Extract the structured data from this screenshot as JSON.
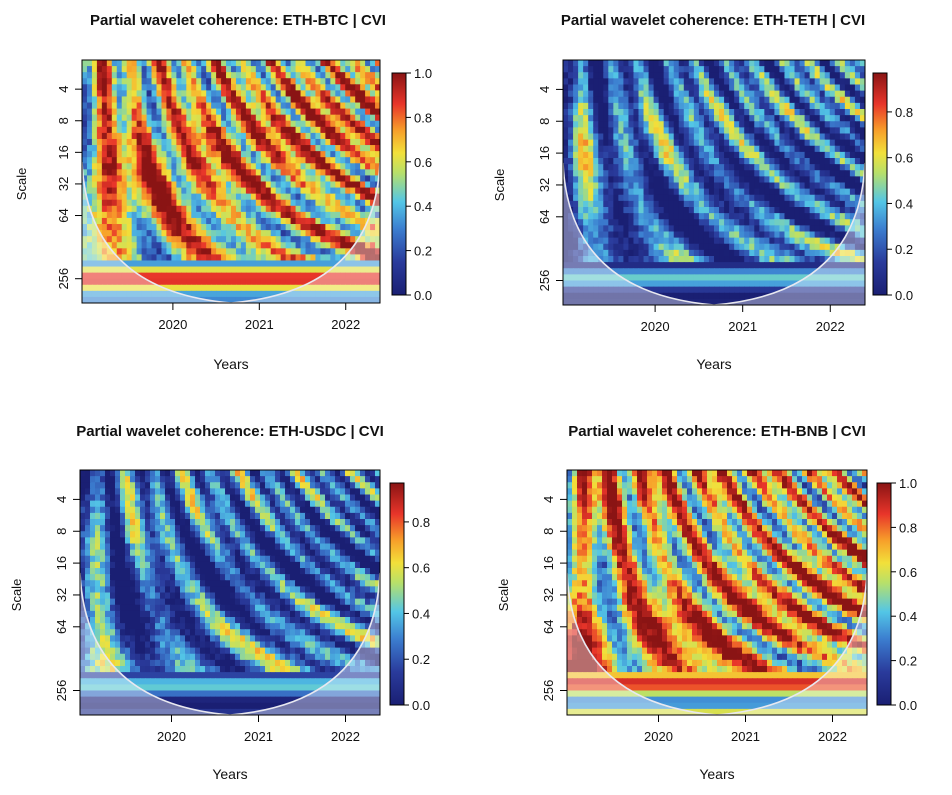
{
  "figure": {
    "panel_count": 4
  },
  "chart_data": [
    {
      "type": "heatmap",
      "title": "Partial wavelet coherence: ETH-BTC | CVI",
      "xlabel": "Years",
      "ylabel": "Scale",
      "x_ticks": [
        "2020",
        "2021",
        "2022"
      ],
      "y_ticks": [
        "4",
        "8",
        "16",
        "32",
        "64",
        "256"
      ],
      "colorbar": {
        "ticks": [
          "0.0",
          "0.2",
          "0.4",
          "0.6",
          "0.8",
          "1.0"
        ],
        "range": [
          0,
          1.0
        ]
      },
      "dominant_coherence": "high"
    },
    {
      "type": "heatmap",
      "title": "Partial wavelet coherence: ETH-TETH | CVI",
      "xlabel": "Years",
      "ylabel": "Scale",
      "x_ticks": [
        "2020",
        "2021",
        "2022"
      ],
      "y_ticks": [
        "4",
        "8",
        "16",
        "32",
        "64",
        "256"
      ],
      "colorbar": {
        "ticks": [
          "0.0",
          "0.2",
          "0.4",
          "0.6",
          "0.8"
        ],
        "range": [
          0,
          0.97
        ]
      },
      "dominant_coherence": "low"
    },
    {
      "type": "heatmap",
      "title": "Partial wavelet coherence: ETH-USDC | CVI",
      "xlabel": "Years",
      "ylabel": "Scale",
      "x_ticks": [
        "2020",
        "2021",
        "2022"
      ],
      "y_ticks": [
        "4",
        "8",
        "16",
        "32",
        "64",
        "256"
      ],
      "colorbar": {
        "ticks": [
          "0.0",
          "0.2",
          "0.4",
          "0.6",
          "0.8"
        ],
        "range": [
          0,
          0.97
        ]
      },
      "dominant_coherence": "low"
    },
    {
      "type": "heatmap",
      "title": "Partial wavelet coherence: ETH-BNB | CVI",
      "xlabel": "Years",
      "ylabel": "Scale",
      "x_ticks": [
        "2020",
        "2021",
        "2022"
      ],
      "y_ticks": [
        "4",
        "8",
        "16",
        "32",
        "64",
        "256"
      ],
      "colorbar": {
        "ticks": [
          "0.0",
          "0.2",
          "0.4",
          "0.6",
          "0.8",
          "1.0"
        ],
        "range": [
          0,
          1.0
        ]
      },
      "dominant_coherence": "high"
    }
  ]
}
